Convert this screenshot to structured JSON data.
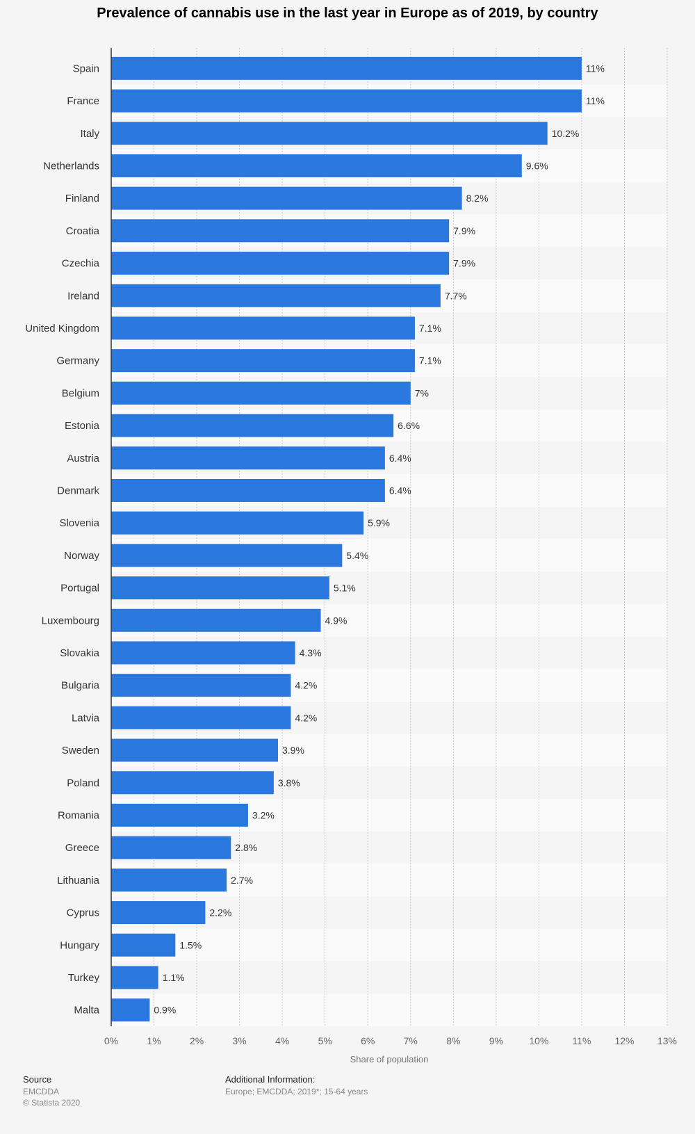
{
  "chart_data": {
    "type": "bar",
    "orientation": "horizontal",
    "title": "Prevalence of cannabis use in the last year in Europe as of 2019, by country",
    "xlabel": "Share of population",
    "ylabel": "",
    "xlim": [
      0,
      13
    ],
    "unit": "%",
    "grid": true,
    "ticks": [
      "0%",
      "1%",
      "2%",
      "3%",
      "4%",
      "5%",
      "6%",
      "7%",
      "8%",
      "9%",
      "10%",
      "11%",
      "12%",
      "13%"
    ],
    "categories": [
      "Spain",
      "France",
      "Italy",
      "Netherlands",
      "Finland",
      "Croatia",
      "Czechia",
      "Ireland",
      "United Kingdom",
      "Germany",
      "Belgium",
      "Estonia",
      "Austria",
      "Denmark",
      "Slovenia",
      "Norway",
      "Portugal",
      "Luxembourg",
      "Slovakia",
      "Bulgaria",
      "Latvia",
      "Sweden",
      "Poland",
      "Romania",
      "Greece",
      "Lithuania",
      "Cyprus",
      "Hungary",
      "Turkey",
      "Malta"
    ],
    "values": [
      11,
      11,
      10.2,
      9.6,
      8.2,
      7.9,
      7.9,
      7.7,
      7.1,
      7.1,
      7,
      6.6,
      6.4,
      6.4,
      5.9,
      5.4,
      5.1,
      4.9,
      4.3,
      4.2,
      4.2,
      3.9,
      3.8,
      3.2,
      2.8,
      2.7,
      2.2,
      1.5,
      1.1,
      0.9
    ],
    "value_labels": [
      "11%",
      "11%",
      "10.2%",
      "9.6%",
      "8.2%",
      "7.9%",
      "7.9%",
      "7.7%",
      "7.1%",
      "7.1%",
      "7%",
      "6.6%",
      "6.4%",
      "6.4%",
      "5.9%",
      "5.4%",
      "5.1%",
      "4.9%",
      "4.3%",
      "4.2%",
      "4.2%",
      "3.9%",
      "3.8%",
      "3.2%",
      "2.8%",
      "2.7%",
      "2.2%",
      "1.5%",
      "1.1%",
      "0.9%"
    ],
    "bar_color": "#2a77dd"
  },
  "footer": {
    "source_heading": "Source",
    "source_lines": [
      "EMCDDA",
      "© Statista 2020"
    ],
    "info_heading": "Additional Information:",
    "info_lines": [
      "Europe; EMCDDA; 2019*; 15-64 years"
    ]
  }
}
